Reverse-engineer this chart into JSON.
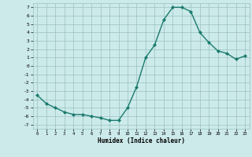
{
  "x": [
    0,
    1,
    2,
    3,
    4,
    5,
    6,
    7,
    8,
    9,
    10,
    11,
    12,
    13,
    14,
    15,
    16,
    17,
    18,
    19,
    20,
    21,
    22,
    23
  ],
  "y": [
    -3.5,
    -4.5,
    -5.0,
    -5.5,
    -5.8,
    -5.8,
    -6.0,
    -6.2,
    -6.5,
    -6.5,
    -5.0,
    -2.5,
    1.0,
    2.5,
    5.5,
    7.0,
    7.0,
    6.5,
    4.0,
    2.8,
    1.8,
    1.5,
    0.8,
    1.2
  ],
  "xlabel": "Humidex (Indice chaleur)",
  "line_color": "#1a7a6e",
  "marker": "D",
  "marker_size": 2,
  "bg_color": "#cceaea",
  "grid_color": "#9abfbf",
  "ylim": [
    -7.5,
    7.5
  ],
  "xlim": [
    -0.5,
    23.5
  ],
  "yticks": [
    -7,
    -6,
    -5,
    -4,
    -3,
    -2,
    -1,
    0,
    1,
    2,
    3,
    4,
    5,
    6,
    7
  ],
  "xticks": [
    0,
    1,
    2,
    3,
    4,
    5,
    6,
    7,
    8,
    9,
    10,
    11,
    12,
    13,
    14,
    15,
    16,
    17,
    18,
    19,
    20,
    21,
    22,
    23
  ]
}
